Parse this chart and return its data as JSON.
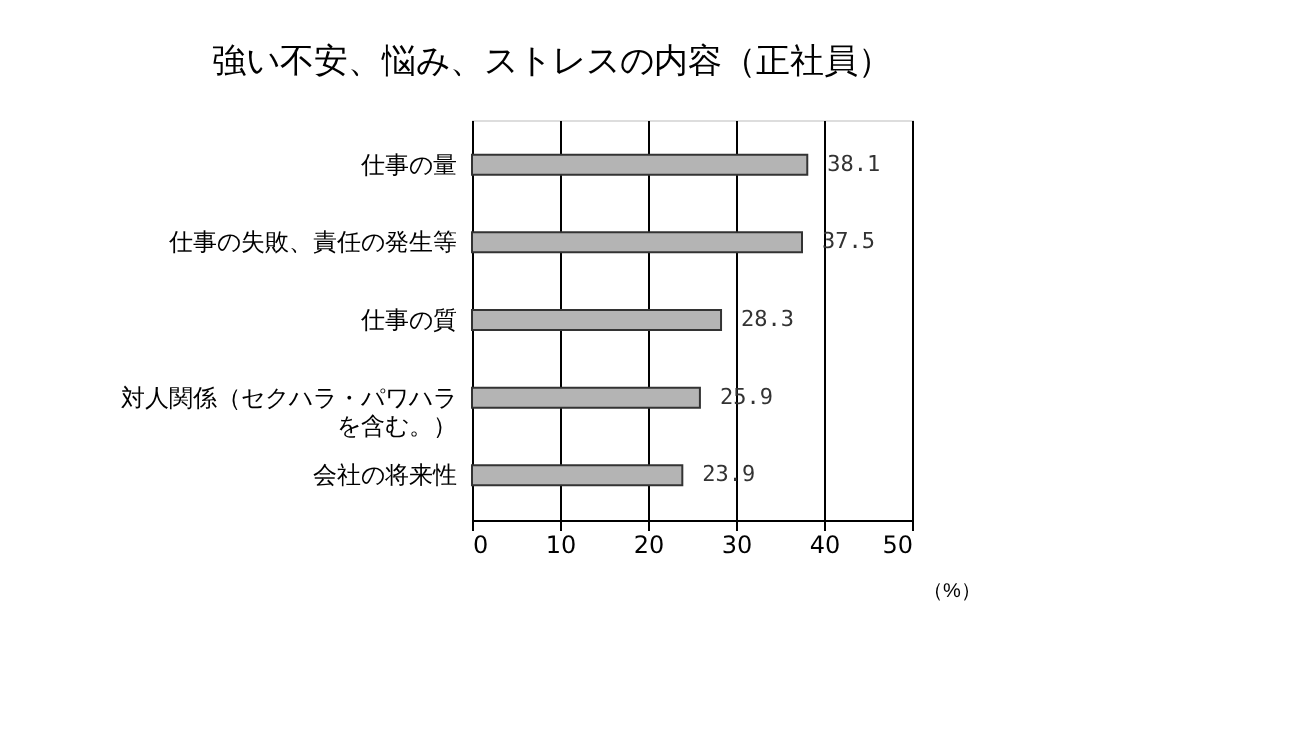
{
  "chart_data": {
    "type": "bar",
    "orientation": "horizontal",
    "title": "強い不安、悩み、ストレスの内容（正社員）",
    "categories": [
      "仕事の量",
      "仕事の失敗、責任の発生等",
      "仕事の質",
      "対人関係（セクハラ・パワハラを含む。）",
      "会社の将来性"
    ],
    "values": [
      38.1,
      37.5,
      28.3,
      25.9,
      23.9
    ],
    "color": "#b4b4b4",
    "xlim": [
      0,
      50
    ],
    "xticks": [
      0,
      10,
      20,
      30,
      40,
      50
    ],
    "xlabel": "（%）",
    "grid": "x",
    "data_labels": true
  }
}
